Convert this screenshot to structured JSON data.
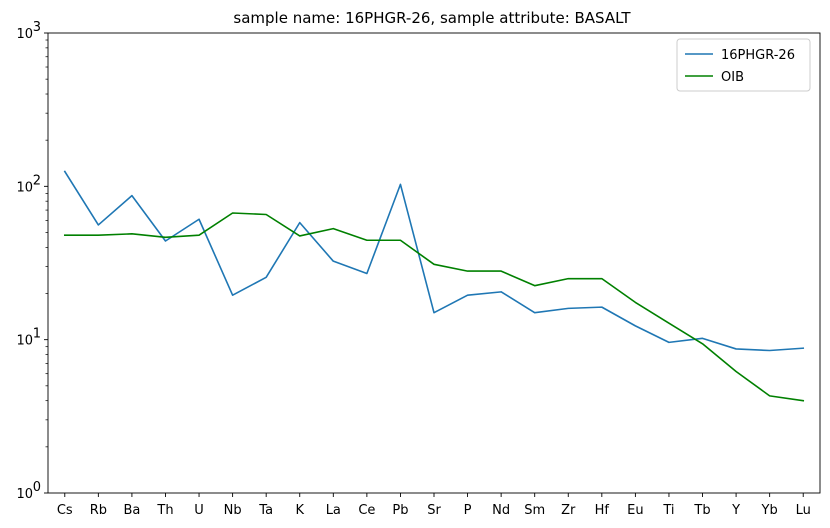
{
  "chart_data": {
    "type": "line",
    "title": "sample name: 16PHGR-26, sample attribute: BASALT",
    "xlabel": "",
    "ylabel": "",
    "yscale": "log",
    "ylim": [
      1,
      1000
    ],
    "y_ticks": [
      {
        "value": 1,
        "base": "10",
        "exp": "0"
      },
      {
        "value": 10,
        "base": "10",
        "exp": "1"
      },
      {
        "value": 100,
        "base": "10",
        "exp": "2"
      },
      {
        "value": 1000,
        "base": "10",
        "exp": "3"
      }
    ],
    "categories": [
      "Cs",
      "Rb",
      "Ba",
      "Th",
      "U",
      "Nb",
      "Ta",
      "K",
      "La",
      "Ce",
      "Pb",
      "Sr",
      "P",
      "Nd",
      "Sm",
      "Zr",
      "Hf",
      "Eu",
      "Ti",
      "Tb",
      "Y",
      "Yb",
      "Lu"
    ],
    "series": [
      {
        "name": "16PHGR-26",
        "color": "#1f77b4",
        "values": [
          125,
          56,
          87,
          44,
          61,
          19.5,
          25.5,
          58,
          32.5,
          27,
          103,
          15,
          19.5,
          20.5,
          15,
          16,
          16.3,
          12.3,
          9.6,
          10.2,
          8.7,
          8.5,
          8.8
        ]
      },
      {
        "name": "OIB",
        "color": "#008000",
        "values": [
          48,
          48,
          49,
          46.5,
          48,
          67,
          65.5,
          47.5,
          53,
          44.5,
          44.5,
          31,
          28,
          28,
          22.5,
          25,
          25,
          17.5,
          12.8,
          9.4,
          6.2,
          4.3,
          4
        ]
      }
    ],
    "legend": {
      "location": "top-right"
    },
    "grid": false
  }
}
